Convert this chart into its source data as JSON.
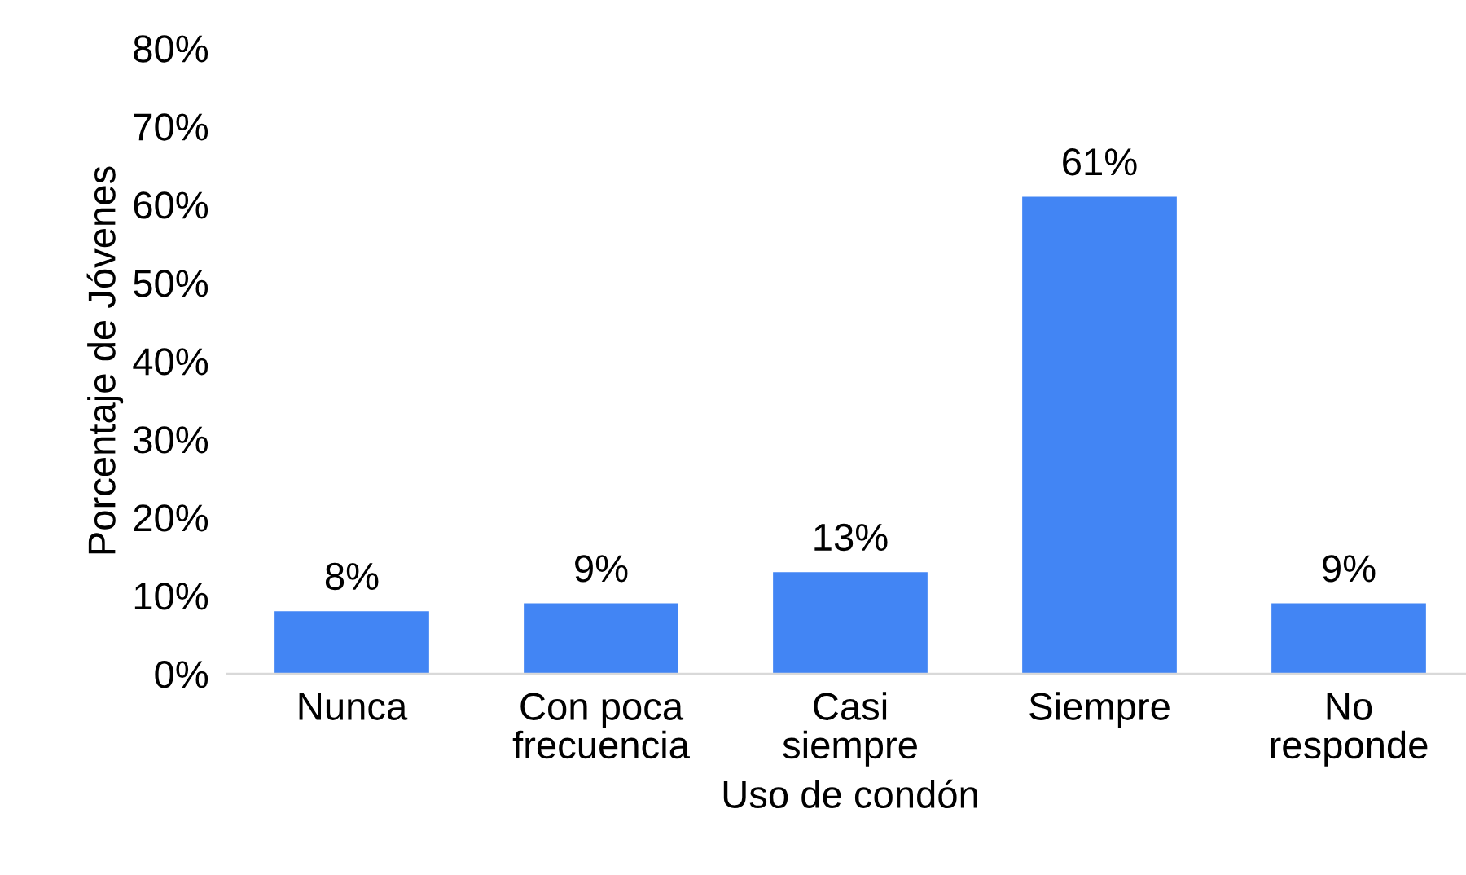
{
  "chart_data": {
    "type": "bar",
    "xlabel": "Uso de condón",
    "ylabel": "Porcentaje de Jóvenes",
    "categories": [
      "Nunca",
      "Con poca\nfrecuencia",
      "Casi\nsiempre",
      "Siempre",
      "No\nresponde"
    ],
    "values": [
      8,
      9,
      13,
      61,
      9
    ],
    "value_labels": [
      "8%",
      "9%",
      "13%",
      "61%",
      "9%"
    ],
    "color": "#4285f4",
    "ylim": [
      0,
      80
    ],
    "yticks": [
      {
        "value": 0,
        "label": "0%"
      },
      {
        "value": 10,
        "label": "10%"
      },
      {
        "value": 20,
        "label": "20%"
      },
      {
        "value": 30,
        "label": "30%"
      },
      {
        "value": 40,
        "label": "40%"
      },
      {
        "value": 50,
        "label": "50%"
      },
      {
        "value": 60,
        "label": "60%"
      },
      {
        "value": 70,
        "label": "70%"
      },
      {
        "value": 80,
        "label": "80%"
      }
    ],
    "grid": false,
    "legend": false
  }
}
